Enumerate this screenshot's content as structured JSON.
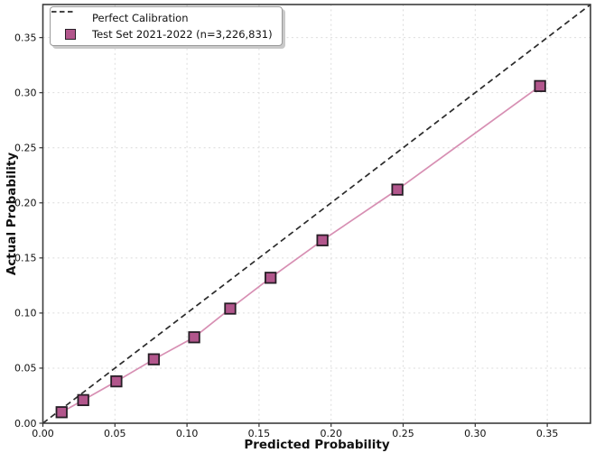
{
  "chart_data": {
    "type": "line",
    "title": "",
    "xlabel": "Predicted Probability",
    "ylabel": "Actual Probability",
    "xlim": [
      0,
      0.38
    ],
    "ylim": [
      0,
      0.38
    ],
    "xticks": [
      0.0,
      0.05,
      0.1,
      0.15,
      0.2,
      0.25,
      0.3,
      0.35
    ],
    "yticks": [
      0.0,
      0.05,
      0.1,
      0.15,
      0.2,
      0.25,
      0.3,
      0.35
    ],
    "grid": true,
    "legend_position": "upper-left",
    "series": [
      {
        "name": "Perfect Calibration",
        "style": "dashed",
        "color": "#2b2b2b",
        "x": [
          0,
          0.38
        ],
        "y": [
          0,
          0.38
        ]
      },
      {
        "name": "Test Set 2021-2022 (n=3,226,831)",
        "style": "solid-with-square-markers",
        "color": "#d78fb3",
        "marker_fill": "#b2568c",
        "marker_edge": "#271e26",
        "x": [
          0.013,
          0.028,
          0.051,
          0.077,
          0.105,
          0.13,
          0.158,
          0.194,
          0.246,
          0.345
        ],
        "y": [
          0.01,
          0.021,
          0.038,
          0.058,
          0.078,
          0.104,
          0.132,
          0.166,
          0.212,
          0.306
        ]
      }
    ],
    "colors": {
      "background": "#ffffff",
      "grid": "#dcdcdc",
      "spine": "#3c3c3c",
      "text": "#111111",
      "tick": "#333333"
    }
  }
}
